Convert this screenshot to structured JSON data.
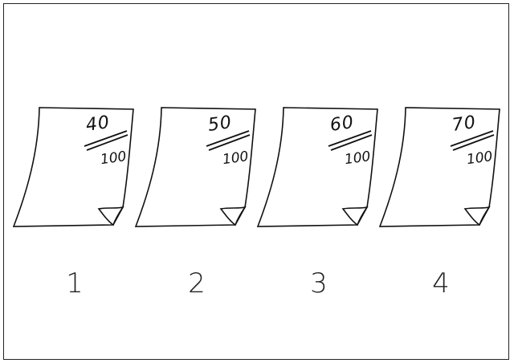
{
  "panels": [
    {
      "numerator": "40",
      "denominator": "100",
      "label": "1"
    },
    {
      "numerator": "50",
      "denominator": "100",
      "label": "2"
    },
    {
      "numerator": "60",
      "denominator": "100",
      "label": "3"
    },
    {
      "numerator": "70",
      "denominator": "100",
      "label": "4"
    }
  ],
  "colors": {
    "ink": "#111111",
    "paper": "#ffffff"
  }
}
